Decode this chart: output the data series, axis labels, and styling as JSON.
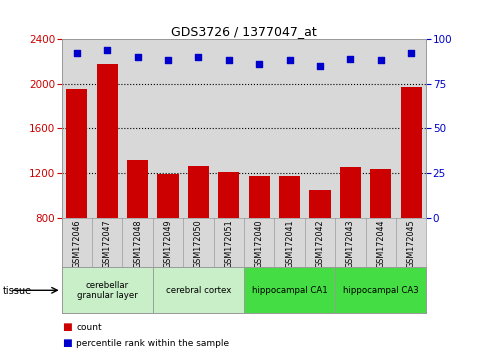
{
  "title": "GDS3726 / 1377047_at",
  "samples": [
    "GSM172046",
    "GSM172047",
    "GSM172048",
    "GSM172049",
    "GSM172050",
    "GSM172051",
    "GSM172040",
    "GSM172041",
    "GSM172042",
    "GSM172043",
    "GSM172044",
    "GSM172045"
  ],
  "counts": [
    1950,
    2180,
    1320,
    1195,
    1265,
    1210,
    1175,
    1170,
    1050,
    1255,
    1235,
    1970
  ],
  "percentiles": [
    92,
    94,
    90,
    88,
    90,
    88,
    86,
    88,
    85,
    89,
    88,
    92
  ],
  "ylim_left": [
    800,
    2400
  ],
  "ylim_right": [
    0,
    100
  ],
  "yticks_left": [
    800,
    1200,
    1600,
    2000,
    2400
  ],
  "yticks_right": [
    0,
    25,
    50,
    75,
    100
  ],
  "bar_color": "#cc0000",
  "dot_color": "#0000cc",
  "grid_color": "#000000",
  "tissue_groups": [
    {
      "label": "cerebellar\ngranular layer",
      "start": 0,
      "end": 3,
      "color": "#c8efc8"
    },
    {
      "label": "cerebral cortex",
      "start": 3,
      "end": 6,
      "color": "#c8efc8"
    },
    {
      "label": "hippocampal CA1",
      "start": 6,
      "end": 9,
      "color": "#44dd44"
    },
    {
      "label": "hippocampal CA3",
      "start": 9,
      "end": 12,
      "color": "#44dd44"
    }
  ],
  "legend_count_label": "count",
  "legend_pct_label": "percentile rank within the sample",
  "tissue_label": "tissue",
  "plot_bg_color": "#d8d8d8",
  "left_axis_color": "#cc0000",
  "right_axis_color": "#0000cc"
}
